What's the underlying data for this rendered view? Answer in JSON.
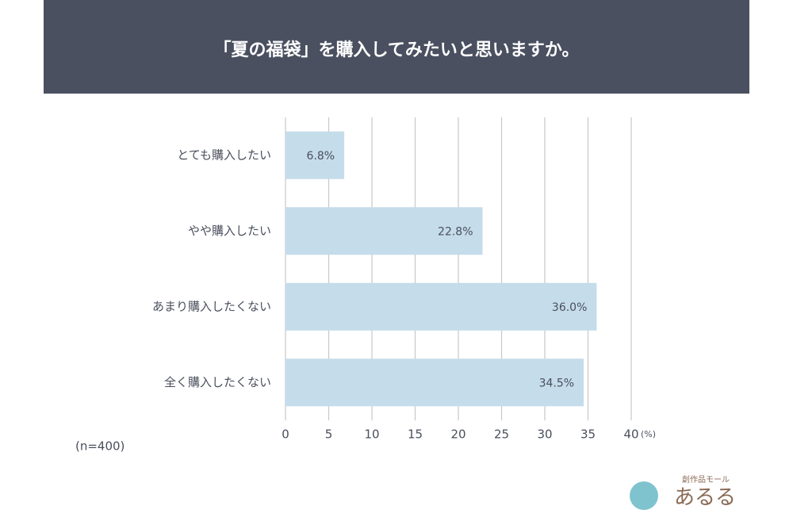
{
  "chart_data": {
    "type": "bar",
    "orientation": "horizontal",
    "title": "「夏の福袋」を購入してみたいと思いますか。",
    "categories": [
      "とても購入したい",
      "やや購入したい",
      "あまり購入したくない",
      "全く購入したくない"
    ],
    "values": [
      6.8,
      22.8,
      36.0,
      34.5
    ],
    "value_labels": [
      "6.8%",
      "22.8%",
      "36.0%",
      "34.5%"
    ],
    "color": "#c5dcea",
    "xlim": [
      0,
      40
    ],
    "xticks": [
      0,
      5,
      10,
      15,
      20,
      25,
      30,
      35,
      40
    ],
    "xlabel": "(%)",
    "grid": true,
    "note": "(n=400)"
  },
  "logo": {
    "tagline": "創作品モール",
    "name": "あるる"
  }
}
